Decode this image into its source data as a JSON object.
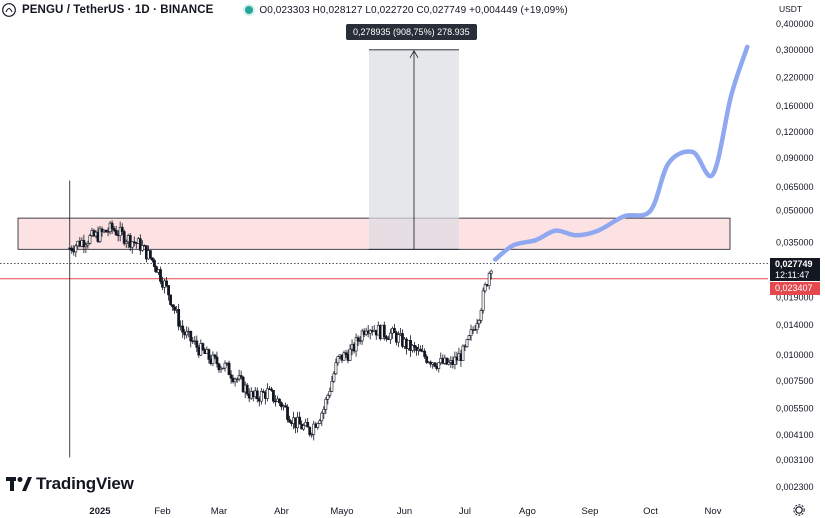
{
  "header": {
    "symbol": "PENGU / TetherUS · 1D · BINANCE",
    "ohlc": "O0,023303 H0,028127 L0,022720 C0,027749 +0,004449 (+19,09%)"
  },
  "axis": {
    "currency": "USDT",
    "price_labels": [
      "0,400000",
      "0,300000",
      "0,220000",
      "0,160000",
      "0,120000",
      "0,090000",
      "0,065000",
      "0,050000",
      "0,035000",
      "0,019000",
      "0,014000",
      "0,010000",
      "0,007500",
      "0,005500",
      "0,004100",
      "0,003100",
      "0,002300"
    ],
    "time_labels": [
      "2025",
      "Feb",
      "Mar",
      "Abr",
      "Mayo",
      "Jun",
      "Jul",
      "Ago",
      "Sep",
      "Oct",
      "Nov"
    ]
  },
  "price_tags": {
    "last_price": "0,027749",
    "countdown": "12:11:47",
    "red_level": "0,023407"
  },
  "measure": {
    "label": "0,278935 (908,75%) 278.935"
  },
  "brand": {
    "name": "TradingView"
  },
  "colors": {
    "bull": "#26a69a",
    "candle": "#131722",
    "projection": "#8fa8ef",
    "zone_fill": "#fde2e4",
    "red_line": "#e5484d",
    "tag_dark": "#131722",
    "tag_red": "#e5484d"
  },
  "chart_data": {
    "type": "candlestick",
    "y_scale": "log",
    "series": [
      {
        "name": "PENGU/USDT",
        "x": [
          "2024-12-17",
          "2024-12-24",
          "2024-12-31",
          "2025-01-07",
          "2025-01-14",
          "2025-01-21",
          "2025-01-28",
          "2025-02-04",
          "2025-02-11",
          "2025-02-18",
          "2025-02-25",
          "2025-03-04",
          "2025-03-11",
          "2025-03-18",
          "2025-03-25",
          "2025-04-01",
          "2025-04-08",
          "2025-04-15",
          "2025-04-22",
          "2025-04-29",
          "2025-05-06",
          "2025-05-13",
          "2025-05-20",
          "2025-05-27",
          "2025-06-03",
          "2025-06-10",
          "2025-06-17",
          "2025-06-24",
          "2025-07-01",
          "2025-07-08",
          "2025-07-14"
        ],
        "close": [
          0.033,
          0.036,
          0.038,
          0.041,
          0.037,
          0.034,
          0.028,
          0.02,
          0.013,
          0.011,
          0.0095,
          0.0088,
          0.0075,
          0.0062,
          0.0066,
          0.0058,
          0.0047,
          0.0043,
          0.0055,
          0.0095,
          0.0105,
          0.014,
          0.013,
          0.0125,
          0.011,
          0.01,
          0.0092,
          0.009,
          0.0105,
          0.016,
          0.0277
        ]
      },
      {
        "name": "Projection",
        "x": [
          "2025-07-16",
          "2025-07-25",
          "2025-08-05",
          "2025-08-15",
          "2025-08-25",
          "2025-09-05",
          "2025-09-18",
          "2025-10-01",
          "2025-10-10",
          "2025-10-22",
          "2025-11-01",
          "2025-11-10",
          "2025-11-18"
        ],
        "close": [
          0.029,
          0.034,
          0.036,
          0.04,
          0.038,
          0.04,
          0.047,
          0.05,
          0.085,
          0.096,
          0.075,
          0.18,
          0.31
        ]
      }
    ],
    "annotations": {
      "resistance_zone": [
        0.0325,
        0.046
      ],
      "red_line": 0.023407,
      "dotted_line": 0.027749,
      "measure_from": 0.0325,
      "measure_to": 0.3
    }
  }
}
